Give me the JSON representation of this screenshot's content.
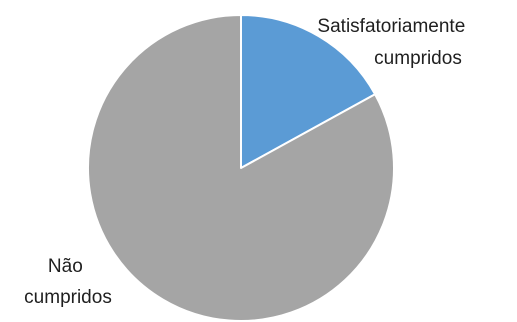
{
  "chart_data": {
    "type": "pie",
    "title": "",
    "legend": "none",
    "slices": [
      {
        "name": "Satisfatoriamente cumpridos",
        "label_lines": [
          "Satisfatoriamente",
          "cumpridos"
        ],
        "value": 17,
        "color": "#5B9BD5"
      },
      {
        "name": "Não cumpridos",
        "label_lines": [
          "Não",
          "cumpridos"
        ],
        "value": 83,
        "color": "#A5A5A5"
      }
    ]
  }
}
